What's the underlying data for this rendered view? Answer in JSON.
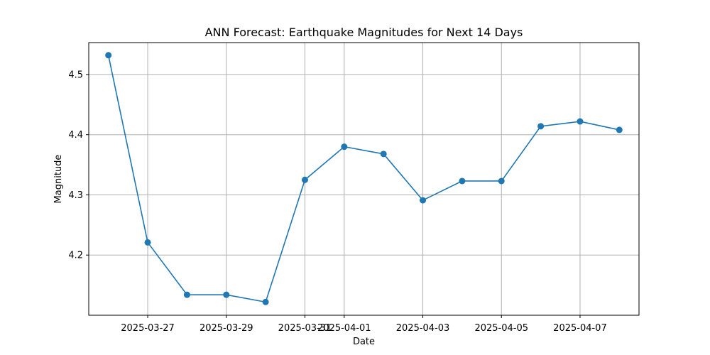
{
  "chart_data": {
    "type": "line",
    "title": "ANN Forecast: Earthquake Magnitudes for Next 14 Days",
    "xlabel": "Date",
    "ylabel": "Magnitude",
    "grid": true,
    "colors": {
      "line": "#1f77b4",
      "grid": "#b0b0b0",
      "axes": "#000000"
    },
    "xlim": [
      "2025-03-25T12:00",
      "2025-04-08T12:00"
    ],
    "ylim": [
      4.1,
      4.553
    ],
    "x_ticks": [
      {
        "value": "2025-03-27",
        "label": "2025-03-27"
      },
      {
        "value": "2025-03-29",
        "label": "2025-03-29"
      },
      {
        "value": "2025-03-31",
        "label": "2025-03-31"
      },
      {
        "value": "2025-04-01",
        "label": "2025-04-01"
      },
      {
        "value": "2025-04-03",
        "label": "2025-04-03"
      },
      {
        "value": "2025-04-05",
        "label": "2025-04-05"
      },
      {
        "value": "2025-04-07",
        "label": "2025-04-07"
      }
    ],
    "y_ticks": [
      {
        "value": 4.2,
        "label": "4.2"
      },
      {
        "value": 4.3,
        "label": "4.3"
      },
      {
        "value": 4.4,
        "label": "4.4"
      },
      {
        "value": 4.5,
        "label": "4.5"
      }
    ],
    "x": [
      "2025-03-26",
      "2025-03-27",
      "2025-03-28",
      "2025-03-29",
      "2025-03-30",
      "2025-03-31",
      "2025-04-01",
      "2025-04-02",
      "2025-04-03",
      "2025-04-04",
      "2025-04-05",
      "2025-04-06",
      "2025-04-07",
      "2025-04-08"
    ],
    "series": [
      {
        "values": [
          4.532,
          4.221,
          4.134,
          4.134,
          4.122,
          4.325,
          4.38,
          4.368,
          4.291,
          4.323,
          4.323,
          4.414,
          4.422,
          4.408
        ]
      }
    ]
  }
}
